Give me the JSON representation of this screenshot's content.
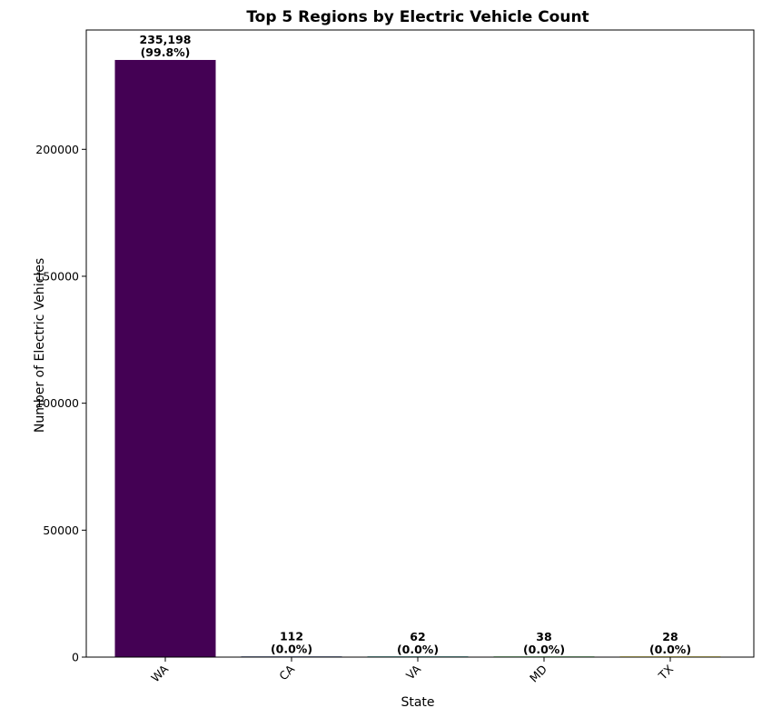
{
  "chart_data": {
    "type": "bar",
    "title": "Top 5 Regions by Electric Vehicle Count",
    "xlabel": "State",
    "ylabel": "Number of Electric Vehicles",
    "categories": [
      "WA",
      "CA",
      "VA",
      "MD",
      "TX"
    ],
    "values": [
      235198,
      112,
      62,
      38,
      28
    ],
    "value_labels": [
      "235,198",
      "112",
      "62",
      "38",
      "28"
    ],
    "percent_labels": [
      "(99.8%)",
      "(0.0%)",
      "(0.0%)",
      "(0.0%)",
      "(0.0%)"
    ],
    "bar_colors": [
      "#440154",
      "#3b528b",
      "#21918c",
      "#5ec962",
      "#fde725"
    ],
    "ylim": [
      0,
      247000
    ],
    "yticks": [
      0,
      50000,
      100000,
      150000,
      200000
    ],
    "ytick_labels": [
      "0",
      "50000",
      "100000",
      "150000",
      "200000"
    ],
    "grid": false,
    "legend": "none"
  }
}
